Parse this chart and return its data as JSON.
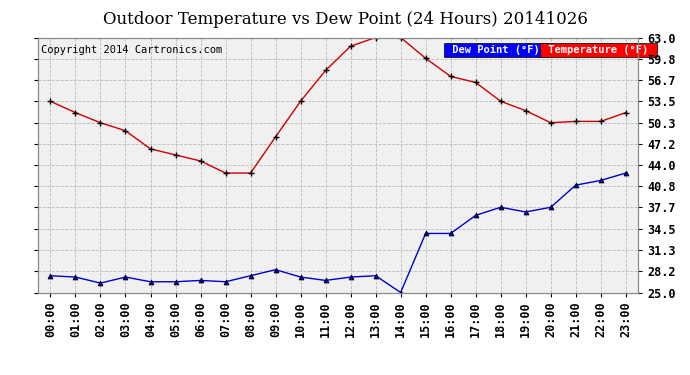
{
  "title": "Outdoor Temperature vs Dew Point (24 Hours) 20141026",
  "copyright": "Copyright 2014 Cartronics.com",
  "legend_dew": "Dew Point (°F)",
  "legend_temp": "Temperature (°F)",
  "x_labels": [
    "00:00",
    "01:00",
    "02:00",
    "03:00",
    "04:00",
    "05:00",
    "06:00",
    "07:00",
    "08:00",
    "09:00",
    "10:00",
    "11:00",
    "12:00",
    "13:00",
    "14:00",
    "15:00",
    "16:00",
    "17:00",
    "18:00",
    "19:00",
    "20:00",
    "21:00",
    "22:00",
    "23:00"
  ],
  "temperature": [
    53.5,
    51.8,
    50.3,
    49.1,
    46.4,
    45.5,
    44.6,
    42.8,
    42.8,
    48.2,
    53.5,
    58.1,
    61.7,
    63.0,
    63.0,
    59.9,
    57.2,
    56.3,
    53.5,
    52.1,
    50.3,
    50.5,
    50.5,
    51.8
  ],
  "dew_point": [
    27.5,
    27.3,
    26.4,
    27.3,
    26.6,
    26.6,
    26.8,
    26.6,
    27.5,
    28.4,
    27.3,
    26.8,
    27.3,
    27.5,
    25.0,
    33.8,
    33.8,
    36.5,
    37.7,
    37.0,
    37.7,
    41.0,
    41.7,
    42.8
  ],
  "temp_color": "#cc0000",
  "dew_color": "#0000cc",
  "ylim_min": 25.0,
  "ylim_max": 63.0,
  "yticks": [
    25.0,
    28.2,
    31.3,
    34.5,
    37.7,
    40.8,
    44.0,
    47.2,
    50.3,
    53.5,
    56.7,
    59.8,
    63.0
  ],
  "ytick_labels": [
    "25.0",
    "28.2",
    "31.3",
    "34.5",
    "37.7",
    "40.8",
    "44.0",
    "47.2",
    "50.3",
    "53.5",
    "56.7",
    "59.8",
    "63.0"
  ],
  "background_color": "#ffffff",
  "plot_bg_color": "#f0f0f0",
  "grid_color": "#bbbbbb",
  "title_fontsize": 12,
  "axis_fontsize": 8.5,
  "copyright_fontsize": 7.5
}
